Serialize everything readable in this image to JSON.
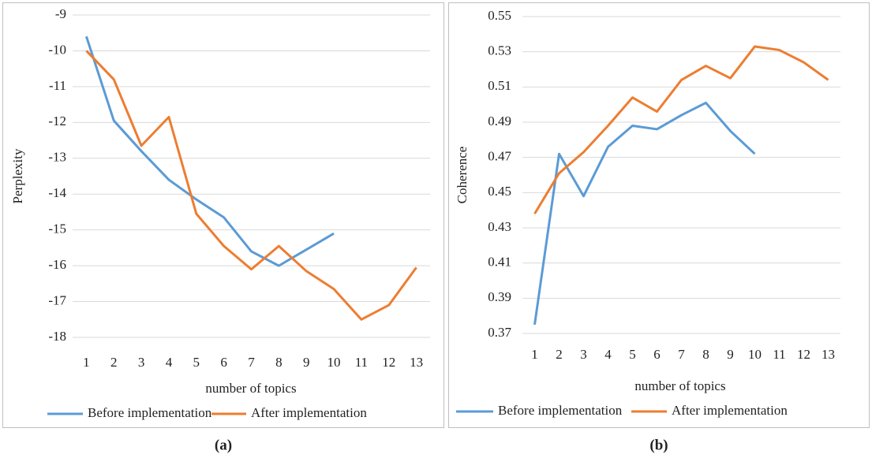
{
  "chart_data": [
    {
      "type": "line",
      "caption": "(a)",
      "ylabel": "Perplexity",
      "xlabel": "number of topics",
      "categories": [
        "1",
        "2",
        "3",
        "4",
        "5",
        "6",
        "7",
        "8",
        "9",
        "10",
        "11",
        "12",
        "13"
      ],
      "series": [
        {
          "name": "Before implementation",
          "color": "#5b9bd5",
          "values": [
            -9.6,
            -11.95,
            -12.8,
            -13.6,
            -14.15,
            -14.65,
            -15.6,
            -16.0,
            -15.55,
            -15.1,
            null,
            null,
            null
          ]
        },
        {
          "name": "After implementation",
          "color": "#ed7d31",
          "values": [
            -10.0,
            -10.8,
            -12.65,
            -11.85,
            -14.55,
            -15.45,
            -16.1,
            -15.45,
            -16.15,
            -16.65,
            -17.5,
            -17.1,
            -16.05
          ]
        }
      ],
      "ylim": [
        -18,
        -9
      ],
      "yticks": [
        -9,
        -10,
        -11,
        -12,
        -13,
        -14,
        -15,
        -16,
        -17,
        -18
      ],
      "grid": true,
      "legend": "bottom"
    },
    {
      "type": "line",
      "caption": "(b)",
      "ylabel": "Coherence",
      "xlabel": "number of topics",
      "categories": [
        "1",
        "2",
        "3",
        "4",
        "5",
        "6",
        "7",
        "8",
        "9",
        "10",
        "11",
        "12",
        "13"
      ],
      "series": [
        {
          "name": "Before implementation",
          "color": "#5b9bd5",
          "values": [
            0.375,
            0.472,
            0.448,
            0.476,
            0.488,
            0.486,
            0.494,
            0.501,
            0.485,
            0.472,
            null,
            null,
            null
          ]
        },
        {
          "name": "After implementation",
          "color": "#ed7d31",
          "values": [
            0.438,
            0.461,
            0.473,
            0.488,
            0.504,
            0.496,
            0.514,
            0.522,
            0.515,
            0.533,
            0.531,
            0.524,
            0.514
          ]
        }
      ],
      "ylim": [
        0.37,
        0.55
      ],
      "yticks": [
        0.55,
        0.53,
        0.51,
        0.49,
        0.47,
        0.45,
        0.43,
        0.41,
        0.39,
        0.37
      ],
      "grid": true,
      "legend": "bottom"
    }
  ]
}
